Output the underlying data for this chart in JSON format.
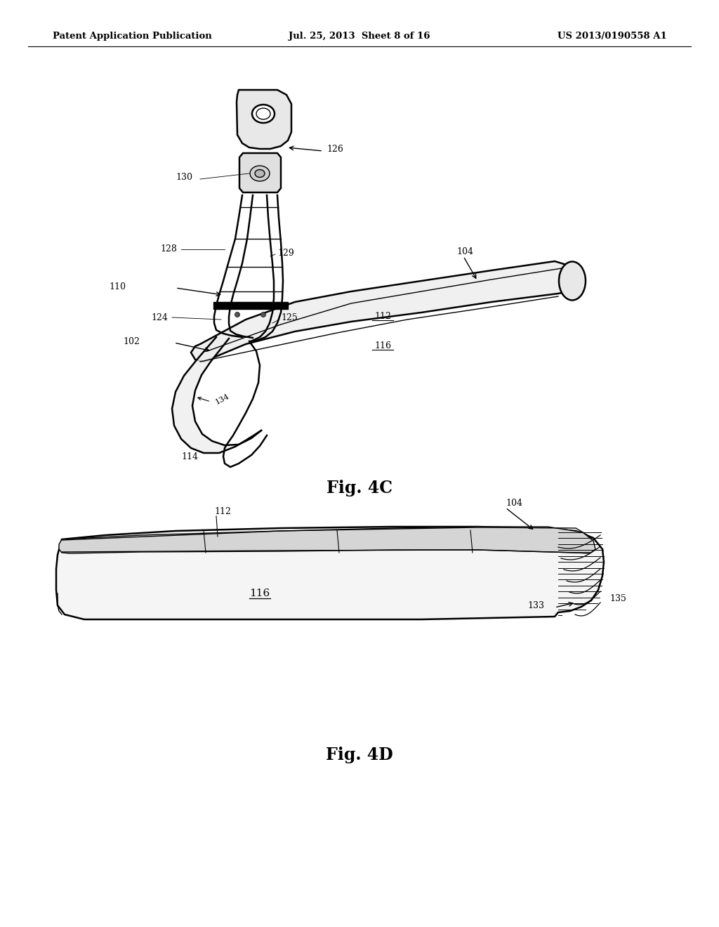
{
  "bg_color": "#ffffff",
  "header_left": "Patent Application Publication",
  "header_mid": "Jul. 25, 2013  Sheet 8 of 16",
  "header_right": "US 2013/0190558 A1",
  "fig4c_label": "Fig. 4C",
  "fig4d_label": "Fig. 4D"
}
